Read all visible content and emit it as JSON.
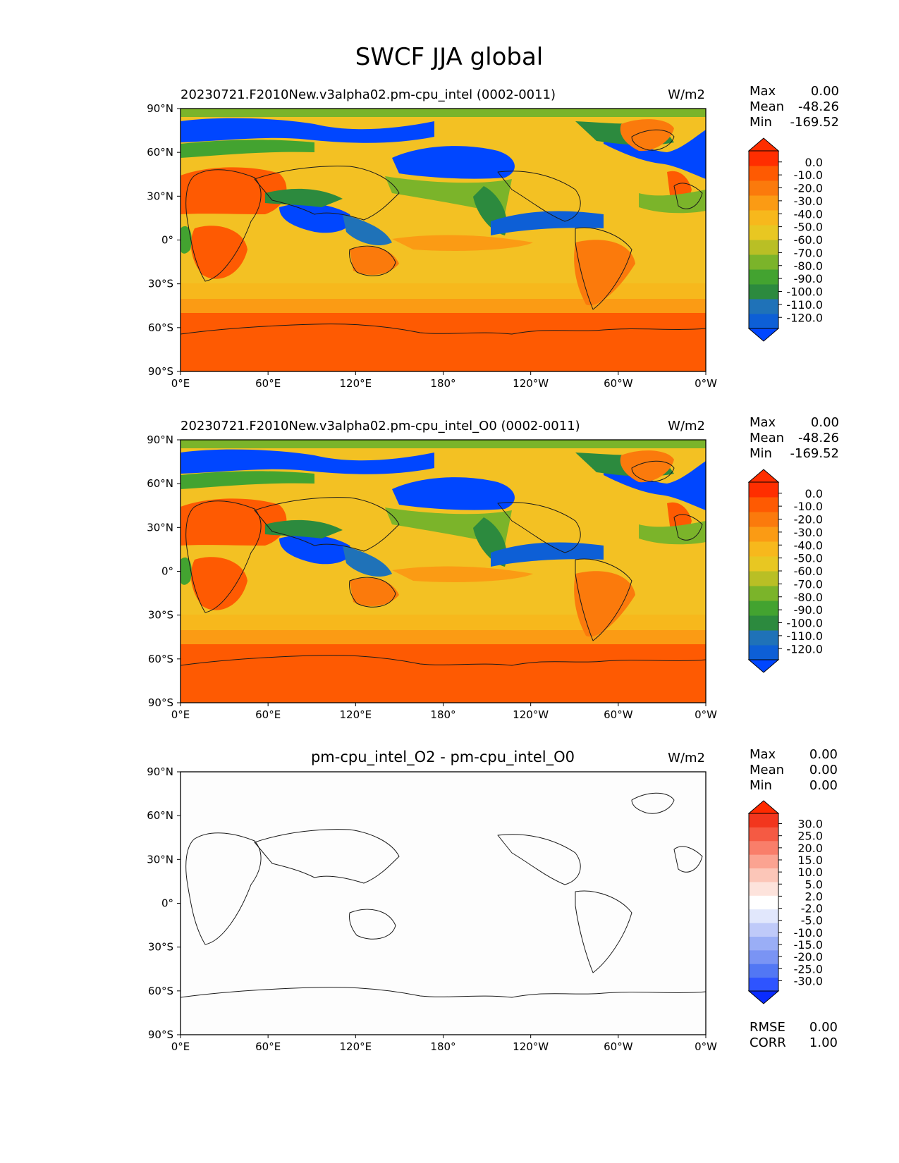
{
  "figure": {
    "title": "SWCF JJA global"
  },
  "chart_data": [
    {
      "type": "heatmap",
      "id": "test",
      "title": "20230721.F2010New.v3alpha02.pm-cpu_intel (0002-0011)",
      "units": "W/m2",
      "xlim": [
        0,
        360
      ],
      "ylim": [
        -90,
        90
      ],
      "x_ticks": [
        "0°E",
        "60°E",
        "120°E",
        "180°",
        "120°W",
        "60°W",
        "0°W"
      ],
      "y_ticks": [
        "90°N",
        "60°N",
        "30°N",
        "0°",
        "30°S",
        "60°S",
        "90°S"
      ],
      "stats": {
        "max_label": "Max",
        "max": "0.00",
        "mean_label": "Mean",
        "mean": "-48.26",
        "min_label": "Min",
        "min": "-169.52"
      },
      "colorbar": {
        "levels": [
          -120,
          -110,
          -100,
          -90,
          -80,
          -70,
          -60,
          -50,
          -40,
          -30,
          -20,
          -10,
          0
        ],
        "labels": [
          "0.0",
          "-10.0",
          "-20.0",
          "-30.0",
          "-40.0",
          "-50.0",
          "-60.0",
          "-70.0",
          "-80.0",
          "-90.0",
          "-100.0",
          "-110.0",
          "-120.0"
        ],
        "colors": [
          "#0046ff",
          "#0d5fd6",
          "#1f72b8",
          "#2c8a3e",
          "#43a330",
          "#7bb42a",
          "#b9bf25",
          "#e8c722",
          "#f7b81c",
          "#fb9b14",
          "#fb7a0c",
          "#fe5a02",
          "#ff2e00",
          "#ff2e00"
        ],
        "extend": "both"
      }
    },
    {
      "type": "heatmap",
      "id": "reference",
      "title": "20230721.F2010New.v3alpha02.pm-cpu_intel_O0 (0002-0011)",
      "units": "W/m2",
      "xlim": [
        0,
        360
      ],
      "ylim": [
        -90,
        90
      ],
      "x_ticks": [
        "0°E",
        "60°E",
        "120°E",
        "180°",
        "120°W",
        "60°W",
        "0°W"
      ],
      "y_ticks": [
        "90°N",
        "60°N",
        "30°N",
        "0°",
        "30°S",
        "60°S",
        "90°S"
      ],
      "stats": {
        "max_label": "Max",
        "max": "0.00",
        "mean_label": "Mean",
        "mean": "-48.26",
        "min_label": "Min",
        "min": "-169.52"
      },
      "colorbar": {
        "levels": [
          -120,
          -110,
          -100,
          -90,
          -80,
          -70,
          -60,
          -50,
          -40,
          -30,
          -20,
          -10,
          0
        ],
        "labels": [
          "0.0",
          "-10.0",
          "-20.0",
          "-30.0",
          "-40.0",
          "-50.0",
          "-60.0",
          "-70.0",
          "-80.0",
          "-90.0",
          "-100.0",
          "-110.0",
          "-120.0"
        ],
        "colors": [
          "#0046ff",
          "#0d5fd6",
          "#1f72b8",
          "#2c8a3e",
          "#43a330",
          "#7bb42a",
          "#b9bf25",
          "#e8c722",
          "#f7b81c",
          "#fb9b14",
          "#fb7a0c",
          "#fe5a02",
          "#ff2e00",
          "#ff2e00"
        ],
        "extend": "both"
      }
    },
    {
      "type": "heatmap",
      "id": "difference",
      "title": "pm-cpu_intel_O2 - pm-cpu_intel_O0",
      "units": "W/m2",
      "xlim": [
        0,
        360
      ],
      "ylim": [
        -90,
        90
      ],
      "x_ticks": [
        "0°E",
        "60°E",
        "120°E",
        "180°",
        "120°W",
        "60°W",
        "0°W"
      ],
      "y_ticks": [
        "90°N",
        "60°N",
        "30°N",
        "0°",
        "30°S",
        "60°S",
        "90°S"
      ],
      "stats": {
        "max_label": "Max",
        "max": "0.00",
        "mean_label": "Mean",
        "mean": "0.00",
        "min_label": "Min",
        "min": "0.00"
      },
      "extra_stats": {
        "rmse_label": "RMSE",
        "rmse": "0.00",
        "corr_label": "CORR",
        "corr": "1.00"
      },
      "colorbar": {
        "levels": [
          -30,
          -25,
          -20,
          -15,
          -10,
          -5,
          -2,
          2,
          5,
          10,
          15,
          20,
          25,
          30
        ],
        "labels": [
          "30.0",
          "25.0",
          "20.0",
          "15.0",
          "10.0",
          "5.0",
          "2.0",
          "-2.0",
          "-5.0",
          "-10.0",
          "-15.0",
          "-20.0",
          "-25.0",
          "-30.0"
        ],
        "colors": [
          "#0a2cff",
          "#2e54ff",
          "#5277f4",
          "#7a94f4",
          "#9aaef6",
          "#bfcaf9",
          "#e1e7fc",
          "#ffffff",
          "#fde3dc",
          "#fcc6b8",
          "#fba391",
          "#f97e6a",
          "#f55a43",
          "#f2361e",
          "#ff2a00"
        ],
        "extend": "both"
      }
    }
  ]
}
